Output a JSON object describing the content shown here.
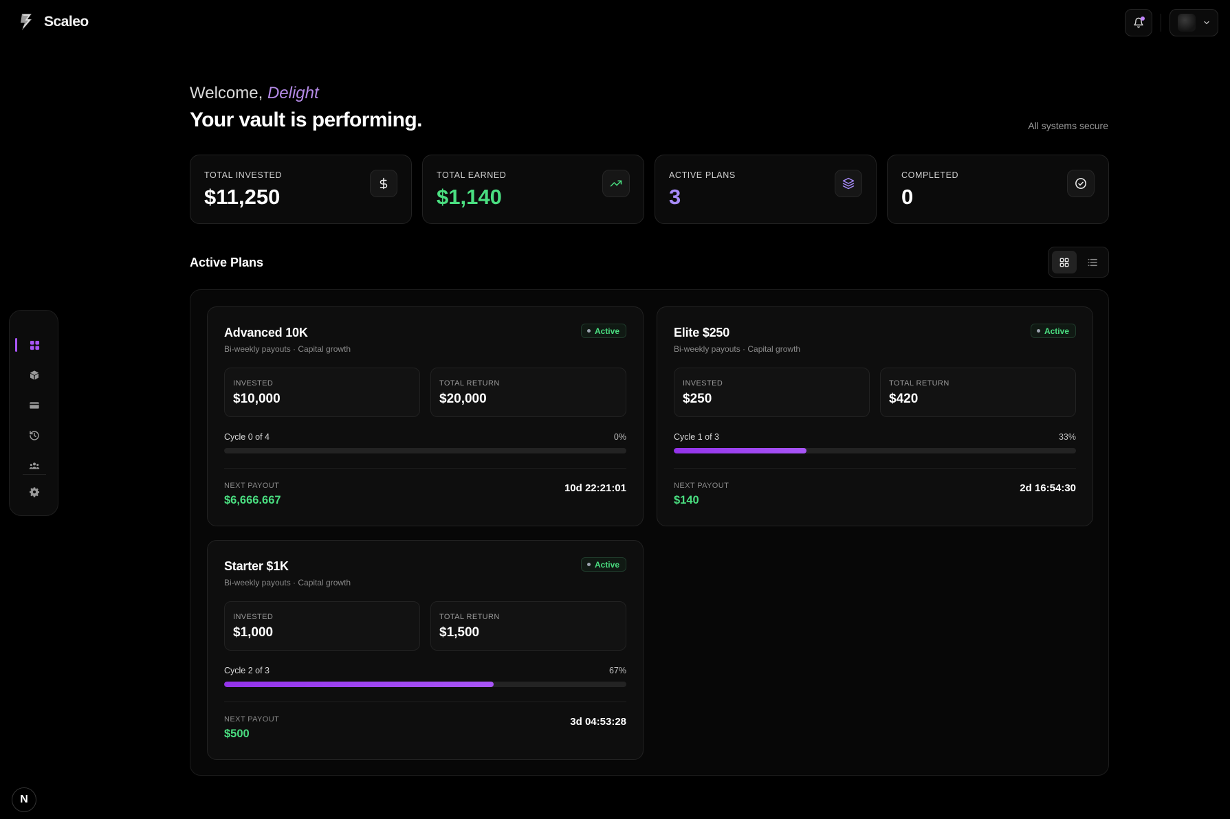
{
  "app": {
    "name": "Scaleo"
  },
  "header": {
    "greeting": "Welcome,",
    "user_name": "Delight",
    "headline": "Your vault is performing.",
    "status": "All systems secure"
  },
  "stats": [
    {
      "label": "TOTAL INVESTED",
      "value": "$11,250",
      "icon": "dollar-icon",
      "color": "#ffffff"
    },
    {
      "label": "TOTAL EARNED",
      "value": "$1,140",
      "icon": "trending-up-icon",
      "color": "#4ade80"
    },
    {
      "label": "ACTIVE PLANS",
      "value": "3",
      "icon": "layers-icon",
      "color": "#a78bfa"
    },
    {
      "label": "COMPLETED",
      "value": "0",
      "icon": "check-circle-icon",
      "color": "#ffffff"
    }
  ],
  "section": {
    "title": "Active Plans"
  },
  "plans": [
    {
      "name": "Advanced 10K",
      "subtitle": "Bi-weekly payouts · Capital growth",
      "status": "Active",
      "invested_label": "INVESTED",
      "invested": "$10,000",
      "return_label": "TOTAL RETURN",
      "total_return": "$20,000",
      "cycle": "Cycle 0 of 4",
      "percent": "0%",
      "progress": 0,
      "payout_label": "NEXT PAYOUT",
      "next_payout": "$6,666.667",
      "countdown": "10d 22:21:01"
    },
    {
      "name": "Elite $250",
      "subtitle": "Bi-weekly payouts · Capital growth",
      "status": "Active",
      "invested_label": "INVESTED",
      "invested": "$250",
      "return_label": "TOTAL RETURN",
      "total_return": "$420",
      "cycle": "Cycle 1 of 3",
      "percent": "33%",
      "progress": 0.33,
      "payout_label": "NEXT PAYOUT",
      "next_payout": "$140",
      "countdown": "2d 16:54:30"
    },
    {
      "name": "Starter $1K",
      "subtitle": "Bi-weekly payouts · Capital growth",
      "status": "Active",
      "invested_label": "INVESTED",
      "invested": "$1,000",
      "return_label": "TOTAL RETURN",
      "total_return": "$1,500",
      "cycle": "Cycle 2 of 3",
      "percent": "67%",
      "progress": 0.67,
      "payout_label": "NEXT PAYOUT",
      "next_payout": "$500",
      "countdown": "3d 04:53:28"
    }
  ],
  "sidebar": {
    "items": [
      "dashboard-icon",
      "cube-icon",
      "card-icon",
      "history-icon",
      "users-icon",
      "settings-icon"
    ]
  },
  "footer_badge": "N",
  "colors": {
    "accent": "#a855f7",
    "positive": "#4ade80",
    "background": "#000000"
  }
}
